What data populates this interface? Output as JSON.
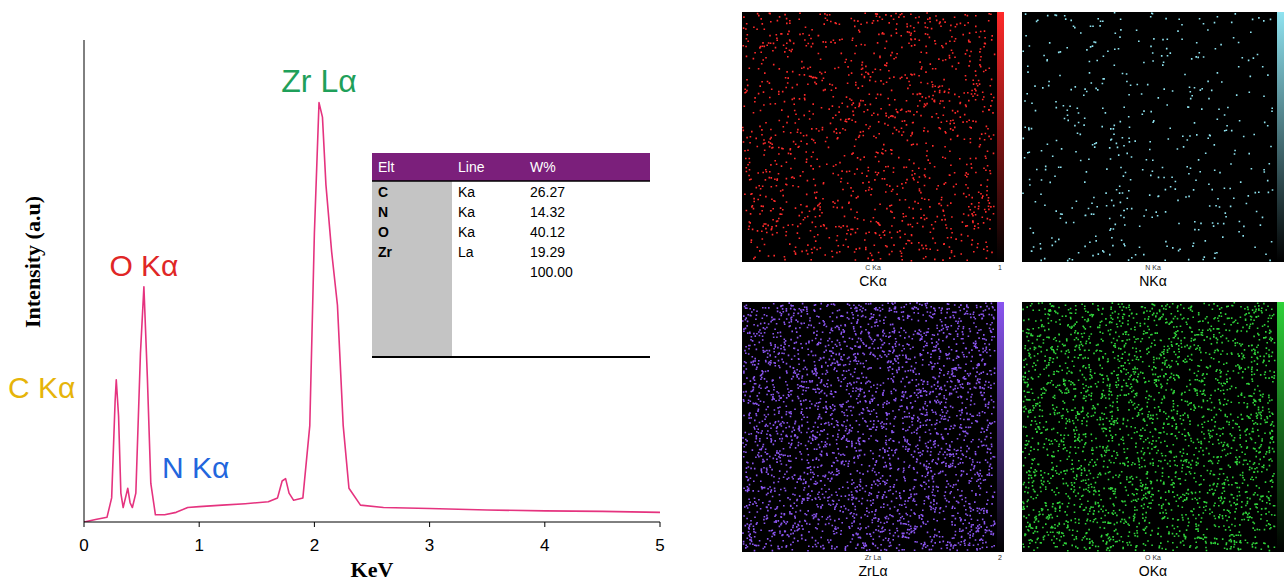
{
  "chart_data": {
    "type": "line",
    "x_label": "KeV",
    "y_label": "Intensity (a.u)",
    "x": [
      0.0,
      0.1,
      0.2,
      0.24,
      0.27,
      0.28,
      0.3,
      0.32,
      0.34,
      0.36,
      0.38,
      0.4,
      0.42,
      0.45,
      0.49,
      0.52,
      0.55,
      0.58,
      0.62,
      0.7,
      0.8,
      0.9,
      1.0,
      1.2,
      1.4,
      1.6,
      1.68,
      1.72,
      1.75,
      1.78,
      1.82,
      1.9,
      1.96,
      2.0,
      2.04,
      2.07,
      2.1,
      2.15,
      2.2,
      2.25,
      2.3,
      2.4,
      2.6,
      3.0,
      3.5,
      4.0,
      4.5,
      5.0
    ],
    "values": [
      0,
      0.5,
      1,
      5,
      25,
      29.5,
      22,
      6,
      3,
      5,
      7,
      4,
      3,
      6,
      35,
      48.8,
      30,
      8,
      1.5,
      1.5,
      2,
      3,
      3.2,
      3.5,
      3.8,
      4.2,
      5,
      8.5,
      9,
      6,
      4.5,
      5,
      20,
      60,
      87,
      84,
      70,
      56,
      45,
      20,
      7,
      3.5,
      3,
      2.8,
      2.5,
      2.3,
      2.2,
      2
    ],
    "color": "#e5337f",
    "xlim": [
      0,
      5
    ],
    "xticks": [
      0,
      1,
      2,
      3,
      4,
      5
    ],
    "ylim": [
      0,
      100
    ],
    "tick_labels": "x",
    "annotations": [
      {
        "text": "C Kα",
        "color": "#e6b40a"
      },
      {
        "text": "N Kα",
        "color": "#2266dd"
      },
      {
        "text": "O Kα",
        "color": "#e02626"
      },
      {
        "text": "Zr Lα",
        "color": "#1fa05a"
      }
    ],
    "table": {
      "columns": [
        "Elt",
        "Line",
        "W%"
      ],
      "rows": [
        [
          "C",
          "Ka",
          26.27
        ],
        [
          "N",
          "Ka",
          14.32
        ],
        [
          "O",
          "Ka",
          40.12
        ],
        [
          "Zr",
          "La",
          19.29
        ]
      ],
      "total": {
        "value": 100,
        "label": "100.00"
      }
    }
  },
  "element_maps": [
    {
      "caption": "CKα",
      "label": "C Ka",
      "scale_max": 1,
      "color": "#ff2a2a"
    },
    {
      "caption": "NKα",
      "label": "N Ka",
      "color": "#8fe3f0"
    },
    {
      "caption": "ZrLα",
      "label": "Zr La",
      "scale_max": 2,
      "color": "#8a55f0"
    },
    {
      "caption": "OKα",
      "label": "O Ka",
      "color": "#2fd23a"
    }
  ]
}
